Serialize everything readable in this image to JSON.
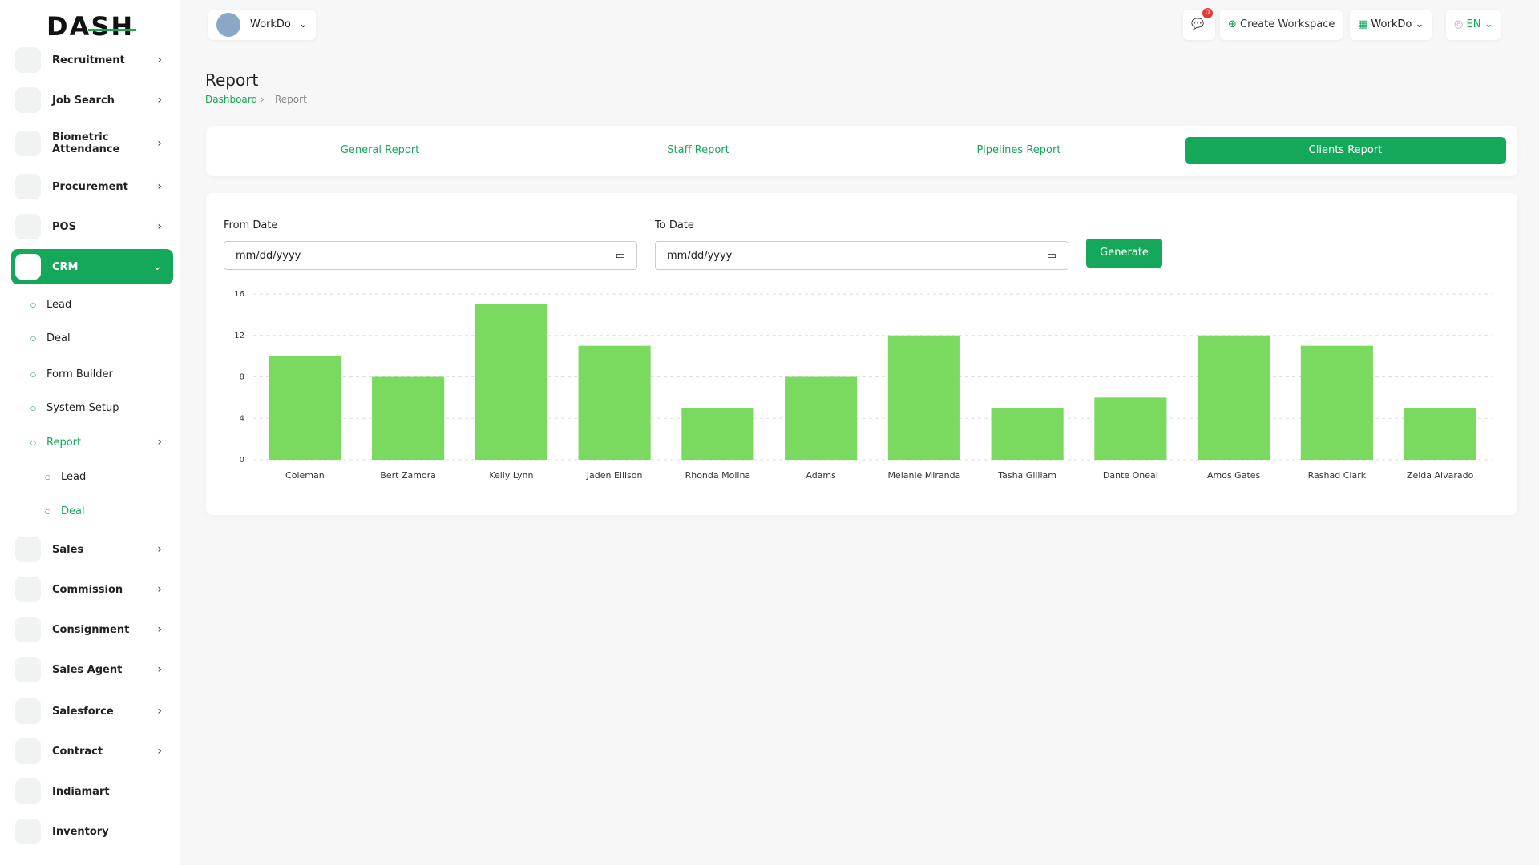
{
  "logo": "DASH",
  "sidebar": {
    "items": [
      {
        "label": "Recruitment"
      },
      {
        "label": "Job Search"
      },
      {
        "label": "Biometric Attendance"
      },
      {
        "label": "Procurement"
      },
      {
        "label": "POS"
      },
      {
        "label": "CRM"
      },
      {
        "label": "Lead"
      },
      {
        "label": "Deal"
      },
      {
        "label": "Form Builder"
      },
      {
        "label": "System Setup"
      },
      {
        "label": "Report"
      },
      {
        "label": "Lead"
      },
      {
        "label": "Deal"
      },
      {
        "label": "Sales"
      },
      {
        "label": "Commission"
      },
      {
        "label": "Consignment"
      },
      {
        "label": "Sales Agent"
      },
      {
        "label": "Salesforce"
      },
      {
        "label": "Contract"
      },
      {
        "label": "Indiamart"
      },
      {
        "label": "Inventory"
      }
    ]
  },
  "header": {
    "workspace": "WorkDo",
    "notifications": "0",
    "create": "Create Workspace",
    "user": "WorkDo",
    "language": "EN"
  },
  "page": {
    "title": "Report",
    "breadcrumb": [
      "Dashboard",
      "Report"
    ]
  },
  "tabs": [
    "General Report",
    "Staff Report",
    "Pipelines Report",
    "Clients Report"
  ],
  "form": {
    "from_label": "From Date",
    "from_placeholder": "mm/dd/yyyy",
    "to_label": "To Date",
    "to_placeholder": "mm/dd/yyyy",
    "button": "Generate"
  },
  "chart_data": {
    "type": "bar",
    "categories": [
      "Coleman",
      "Bert Zamora",
      "Kelly Lynn",
      "Jaden Ellison",
      "Rhonda Molina",
      "Adams",
      "Melanie Miranda",
      "Tasha Gilliam",
      "Dante Oneal",
      "Amos Gates",
      "Rashad Clark",
      "Zelda Alvarado"
    ],
    "values": [
      10,
      8,
      15,
      11,
      5,
      8,
      12,
      5,
      6,
      12,
      11,
      5
    ],
    "color": "#7ad95f",
    "ylim": [
      0,
      16
    ],
    "yticks": [
      0,
      4,
      8,
      12,
      16
    ],
    "grid": true
  }
}
